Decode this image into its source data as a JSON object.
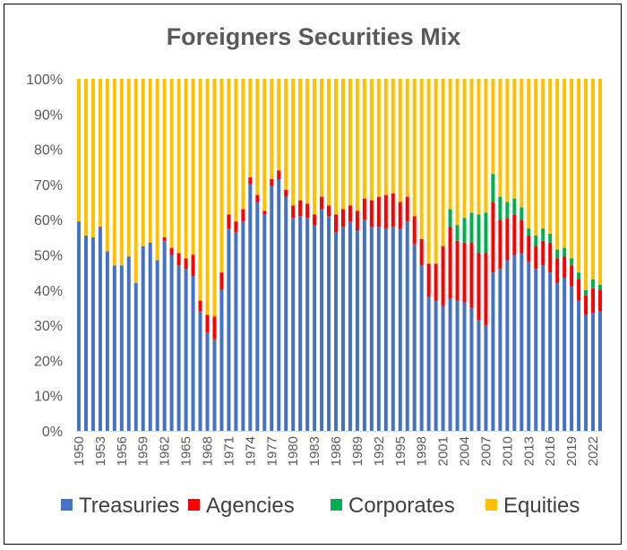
{
  "chart_data": {
    "type": "bar",
    "stacked": true,
    "title": "Foreigners Securities Mix",
    "xlabel": "",
    "ylabel": "",
    "ylim": [
      0,
      100
    ],
    "yticks": [
      "0%",
      "10%",
      "20%",
      "30%",
      "40%",
      "50%",
      "60%",
      "70%",
      "80%",
      "90%",
      "100%"
    ],
    "xtick_labels": [
      "1950",
      "1953",
      "1956",
      "1959",
      "1962",
      "1965",
      "1968",
      "1971",
      "1974",
      "1977",
      "1980",
      "1983",
      "1986",
      "1989",
      "1992",
      "1995",
      "1998",
      "2001",
      "2004",
      "2007",
      "2010",
      "2013",
      "2016",
      "2019",
      "2022"
    ],
    "grid": false,
    "legend": "bottom",
    "colors": {
      "Treasuries": "#4472C4",
      "Agencies": "#FF0000",
      "Corporates": "#00B050",
      "Equities": "#FFC000"
    },
    "categories": [
      1950,
      1951,
      1952,
      1953,
      1954,
      1955,
      1956,
      1957,
      1958,
      1959,
      1960,
      1961,
      1962,
      1963,
      1964,
      1965,
      1966,
      1967,
      1968,
      1969,
      1970,
      1971,
      1972,
      1973,
      1974,
      1975,
      1976,
      1977,
      1978,
      1979,
      1980,
      1981,
      1982,
      1983,
      1984,
      1985,
      1986,
      1987,
      1988,
      1989,
      1990,
      1991,
      1992,
      1993,
      1994,
      1995,
      1996,
      1997,
      1998,
      1999,
      2000,
      2001,
      2002,
      2003,
      2004,
      2005,
      2006,
      2007,
      2008,
      2009,
      2010,
      2011,
      2012,
      2013,
      2014,
      2015,
      2016,
      2017,
      2018,
      2019,
      2020,
      2021,
      2022,
      2023
    ],
    "series": [
      {
        "name": "Treasuries",
        "values": [
          59.5,
          55.5,
          55,
          58,
          51,
          47,
          47,
          49.5,
          42,
          52.5,
          53.5,
          48.5,
          54,
          50,
          47,
          46,
          44,
          34,
          28,
          26,
          40,
          57.5,
          56.5,
          59.5,
          70,
          65,
          61.5,
          69.5,
          71.5,
          66.5,
          60.5,
          61,
          60.5,
          58.5,
          63,
          61,
          56.5,
          58,
          59.5,
          57,
          60,
          58,
          58,
          57.5,
          58,
          57.5,
          59.5,
          53,
          47,
          38,
          37,
          35.5,
          37.5,
          37,
          36.5,
          35,
          31.5,
          30,
          45,
          46,
          48.5,
          50,
          50.5,
          48,
          46,
          47,
          45,
          42,
          43.5,
          41,
          37,
          33,
          33.5,
          34
        ]
      },
      {
        "name": "Agencies",
        "values": [
          0,
          0,
          0,
          0,
          0,
          0,
          0,
          0,
          0,
          0,
          0,
          0,
          1,
          2,
          3.5,
          3,
          6,
          3,
          5,
          6.5,
          5,
          4,
          3,
          3.5,
          2,
          2,
          1,
          2,
          2.5,
          2,
          3.5,
          4.5,
          4,
          3,
          3.5,
          3,
          5,
          5,
          4.5,
          5.5,
          6,
          7.5,
          8.5,
          9.5,
          9.5,
          7.5,
          7,
          8,
          7.5,
          9.5,
          10.5,
          17,
          20.5,
          17,
          17,
          18.5,
          19,
          20.5,
          20,
          14,
          12,
          11.5,
          9.5,
          7.5,
          6.5,
          7,
          8.5,
          7,
          6,
          6,
          6,
          5.5,
          7,
          6
        ]
      },
      {
        "name": "Corporates",
        "values": [
          0,
          0,
          0,
          0,
          0,
          0,
          0,
          0,
          0,
          0,
          0,
          0,
          0,
          0,
          0,
          0,
          0,
          0,
          0,
          0,
          0,
          0,
          0,
          0,
          0,
          0,
          0,
          0,
          0,
          0,
          0,
          0,
          0,
          0,
          0,
          0,
          0,
          0,
          0,
          0,
          0,
          0,
          0,
          0,
          0,
          0,
          0,
          0,
          0,
          0,
          0,
          0,
          5,
          4.5,
          7,
          8.5,
          11,
          11.5,
          8,
          6.5,
          4.5,
          4.5,
          3.5,
          2,
          3,
          3.5,
          2.5,
          2.5,
          2.5,
          2,
          2,
          1.5,
          2.5,
          1.5
        ]
      },
      {
        "name": "Equities",
        "values": [
          40.5,
          44.5,
          45,
          42,
          49,
          53,
          53,
          50.5,
          58,
          47.5,
          46.5,
          51.5,
          45,
          48,
          49.5,
          51,
          50,
          63,
          67,
          67.5,
          55,
          38.5,
          40.5,
          37,
          28,
          33,
          37.5,
          28.5,
          26,
          31.5,
          36,
          34.5,
          35.5,
          38.5,
          33.5,
          36,
          38.5,
          37,
          36,
          37.5,
          34,
          34.5,
          33.5,
          33,
          32.5,
          35,
          33.5,
          39,
          45.5,
          52.5,
          52.5,
          47.5,
          37,
          41.5,
          39.5,
          38,
          38.5,
          38,
          27,
          33.5,
          35,
          34,
          36.5,
          42.5,
          44.5,
          42.5,
          44,
          48.5,
          48,
          51,
          55,
          60,
          57,
          58.5
        ]
      }
    ]
  }
}
